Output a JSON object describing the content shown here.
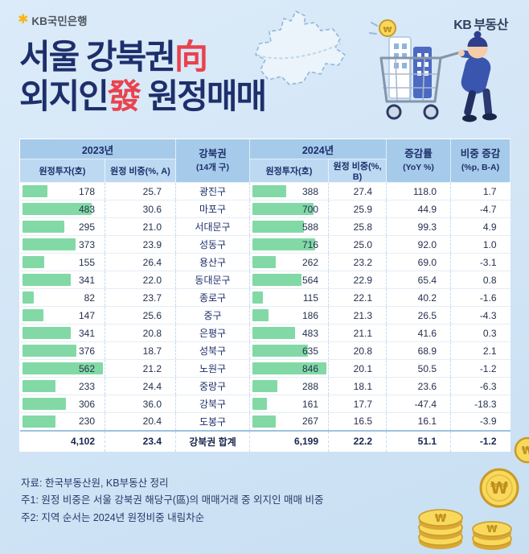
{
  "brand": {
    "bank_logo": "KB국민은행",
    "star_icon": "✱",
    "realestate_kb": "KB",
    "realestate_text": "부동산"
  },
  "title": {
    "line1_main": "서울 강북권",
    "line1_hanja": "向",
    "line2_main": "외지인",
    "line2_hanja": "發",
    "line2_rest": " 원정매매"
  },
  "table": {
    "header": {
      "group_2023": "2023년",
      "group_2024": "2024년",
      "district_l1": "강북권",
      "district_l2": "(14개 구)",
      "invest_label": "원정투자(호)",
      "share_a_label": "원정 비중(%, A)",
      "share_b_label": "원정 비중(%, B)",
      "yoy_l1": "증감률",
      "yoy_l2": "(YoY %)",
      "diff_l1": "비중 증감",
      "diff_l2": "(%p, B-A)"
    }
  },
  "chart_data": {
    "type": "table",
    "title": "서울 강북권向 외지인發 원정매매",
    "columns": [
      "원정투자(호) 2023년",
      "원정 비중(%, A) 2023년",
      "강북권 (14개 구)",
      "원정투자(호) 2024년",
      "원정 비중(%, B) 2024년",
      "증감률(YoY %)",
      "비중 증감(%p, B-A)"
    ],
    "bar_columns": [
      "invest_2023",
      "invest_2024"
    ],
    "rows": [
      {
        "district": "광진구",
        "invest_2023": 178,
        "share_2023": 25.7,
        "invest_2024": 388,
        "share_2024": 27.4,
        "yoy": 118.0,
        "diff": 1.7
      },
      {
        "district": "마포구",
        "invest_2023": 483,
        "share_2023": 30.6,
        "invest_2024": 700,
        "share_2024": 25.9,
        "yoy": 44.9,
        "diff": -4.7
      },
      {
        "district": "서대문구",
        "invest_2023": 295,
        "share_2023": 21.0,
        "invest_2024": 588,
        "share_2024": 25.8,
        "yoy": 99.3,
        "diff": 4.9
      },
      {
        "district": "성동구",
        "invest_2023": 373,
        "share_2023": 23.9,
        "invest_2024": 716,
        "share_2024": 25.0,
        "yoy": 92.0,
        "diff": 1.0
      },
      {
        "district": "용산구",
        "invest_2023": 155,
        "share_2023": 26.4,
        "invest_2024": 262,
        "share_2024": 23.2,
        "yoy": 69.0,
        "diff": -3.1
      },
      {
        "district": "동대문구",
        "invest_2023": 341,
        "share_2023": 22.0,
        "invest_2024": 564,
        "share_2024": 22.9,
        "yoy": 65.4,
        "diff": 0.8
      },
      {
        "district": "종로구",
        "invest_2023": 82,
        "share_2023": 23.7,
        "invest_2024": 115,
        "share_2024": 22.1,
        "yoy": 40.2,
        "diff": -1.6
      },
      {
        "district": "중구",
        "invest_2023": 147,
        "share_2023": 25.6,
        "invest_2024": 186,
        "share_2024": 21.3,
        "yoy": 26.5,
        "diff": -4.3
      },
      {
        "district": "은평구",
        "invest_2023": 341,
        "share_2023": 20.8,
        "invest_2024": 483,
        "share_2024": 21.1,
        "yoy": 41.6,
        "diff": 0.3
      },
      {
        "district": "성북구",
        "invest_2023": 376,
        "share_2023": 18.7,
        "invest_2024": 635,
        "share_2024": 20.8,
        "yoy": 68.9,
        "diff": 2.1
      },
      {
        "district": "노원구",
        "invest_2023": 562,
        "share_2023": 21.2,
        "invest_2024": 846,
        "share_2024": 20.1,
        "yoy": 50.5,
        "diff": -1.2
      },
      {
        "district": "중랑구",
        "invest_2023": 233,
        "share_2023": 24.4,
        "invest_2024": 288,
        "share_2024": 18.1,
        "yoy": 23.6,
        "diff": -6.3
      },
      {
        "district": "강북구",
        "invest_2023": 306,
        "share_2023": 36.0,
        "invest_2024": 161,
        "share_2024": 17.7,
        "yoy": -47.4,
        "diff": -18.3
      },
      {
        "district": "도봉구",
        "invest_2023": 230,
        "share_2023": 20.4,
        "invest_2024": 267,
        "share_2024": 16.5,
        "yoy": 16.1,
        "diff": -3.9
      }
    ],
    "total": {
      "district": "강북권 합계",
      "invest_2023": 4102,
      "share_2023": 23.4,
      "invest_2024": 6199,
      "share_2024": 22.2,
      "yoy": 51.1,
      "diff": -1.2
    }
  },
  "notes": [
    "자료: 한국부동산원, KB부동산 정리",
    "주1: 원정 비중은 서울 강북권 해당구(區)의 매매거래 중 외지인 매매 비중",
    "주2: 지역 순서는 2024년 원정비중 내림차순"
  ],
  "colors": {
    "background": "#d1e5f6",
    "title_navy": "#1d2f6b",
    "title_red": "#e8434d",
    "bar_green": "#82d9a5",
    "header_blue_dark": "#a6cbea",
    "header_blue_light": "#bdd9f2",
    "coin_gold": "#f8d95c"
  }
}
